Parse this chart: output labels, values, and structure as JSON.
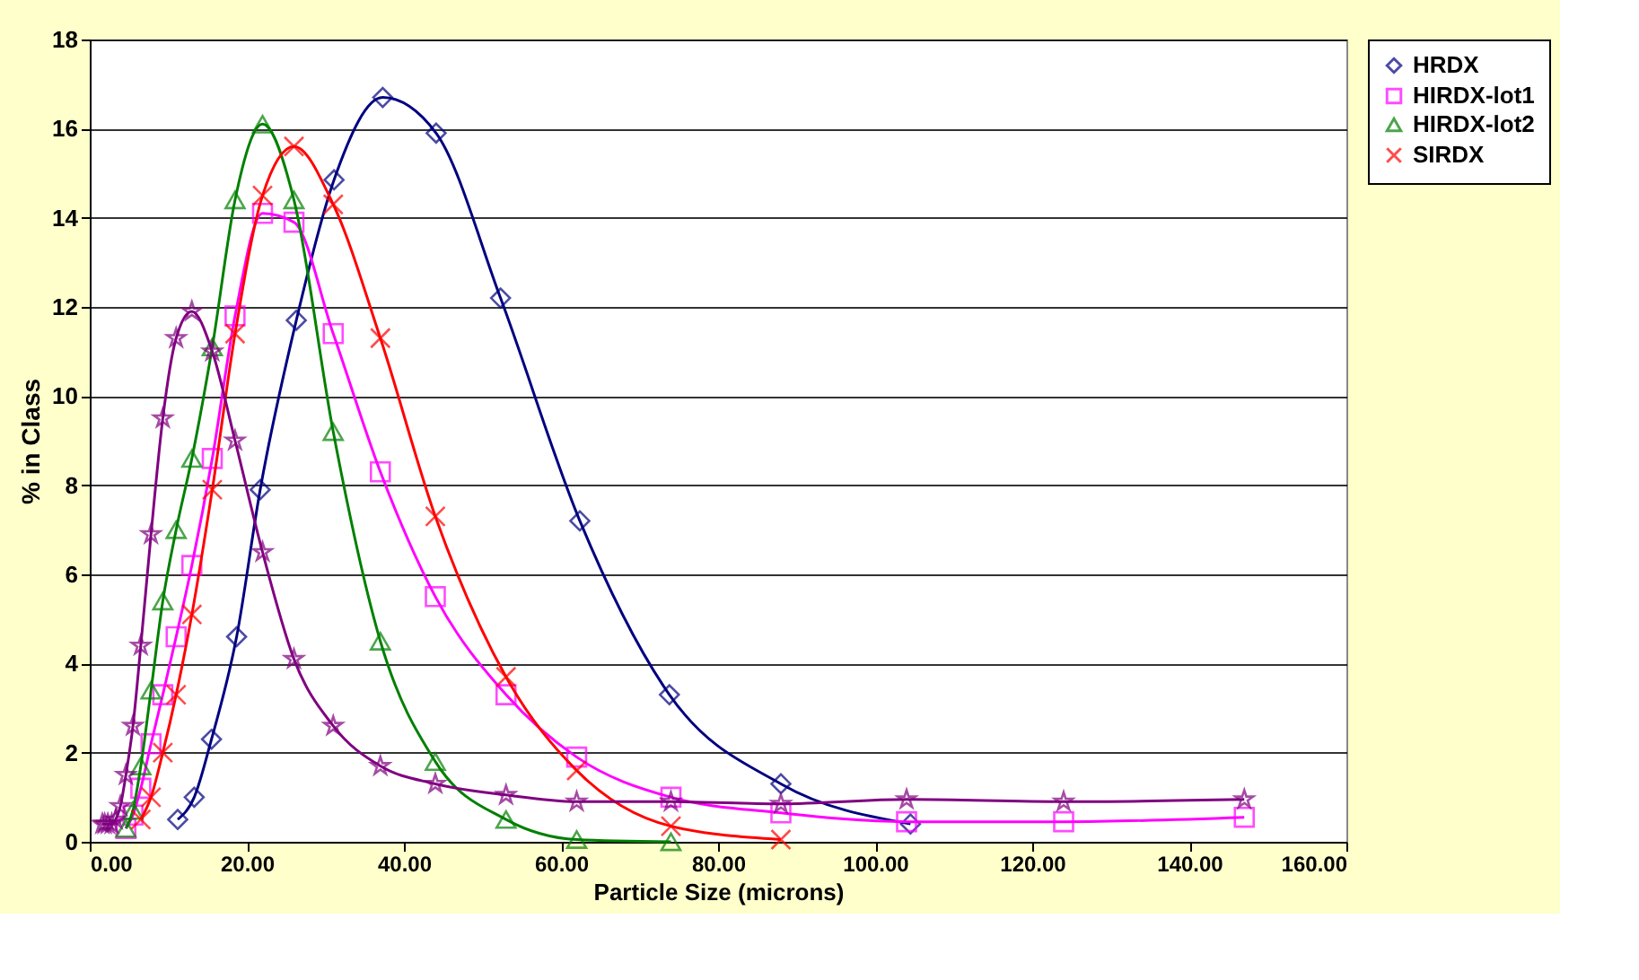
{
  "chart_data": {
    "type": "line",
    "xlabel": "Particle Size (microns)",
    "ylabel": "% in Class",
    "xlim": [
      0,
      160
    ],
    "xticks": [
      {
        "value": 0,
        "label": "0.00"
      },
      {
        "value": 20,
        "label": "20.00"
      },
      {
        "value": 40,
        "label": "40.00"
      },
      {
        "value": 60,
        "label": "60.00"
      },
      {
        "value": 80,
        "label": "80.00"
      },
      {
        "value": 100,
        "label": "100.00"
      },
      {
        "value": 120,
        "label": "120.00"
      },
      {
        "value": 140,
        "label": "140.00"
      },
      {
        "value": 160,
        "label": "160.00"
      }
    ],
    "ylim": [
      0,
      18
    ],
    "yticks": [
      0,
      2,
      4,
      6,
      8,
      10,
      12,
      14,
      16,
      18
    ],
    "grid": "y",
    "legend": "right",
    "series": [
      {
        "name": "HRDX",
        "color": "#000080",
        "marker": "diamond",
        "x": [
          11.2,
          13.3,
          15.5,
          18.7,
          21.7,
          26.3,
          31.1,
          37.3,
          44.1,
          52.3,
          62.4,
          73.8,
          88.0,
          104.5
        ],
        "values": [
          0.5,
          1.0,
          2.3,
          4.6,
          7.9,
          11.7,
          14.85,
          16.7,
          15.9,
          12.2,
          7.2,
          3.3,
          1.3,
          0.4
        ]
      },
      {
        "name": "HIRDX-lot1",
        "color": "#ff00ff",
        "marker": "square",
        "x": [
          4.6,
          5.5,
          6.5,
          7.8,
          9.3,
          11,
          13,
          15.6,
          18.5,
          22,
          26,
          31,
          37,
          44,
          53,
          62,
          74,
          88,
          104,
          124,
          147
        ],
        "values": [
          0.3,
          0.6,
          1.2,
          2.2,
          3.3,
          4.6,
          6.2,
          8.6,
          11.8,
          14.1,
          13.9,
          11.4,
          8.3,
          5.5,
          3.3,
          1.9,
          1.0,
          0.65,
          0.45,
          0.45,
          0.55
        ]
      },
      {
        "name": "HIRDX-lot2",
        "color": "#008000",
        "marker": "triangle",
        "x": [
          4.6,
          5.5,
          6.5,
          7.8,
          9.3,
          11,
          13,
          15.6,
          18.5,
          22,
          26,
          31,
          37,
          44,
          53,
          62,
          74
        ],
        "values": [
          0.3,
          0.7,
          1.7,
          3.4,
          5.4,
          7.0,
          8.6,
          11.1,
          14.4,
          16.1,
          14.4,
          9.2,
          4.5,
          1.8,
          0.5,
          0.05,
          0.0
        ]
      },
      {
        "name": "SIRDX",
        "color": "#ff0000",
        "marker": "cross",
        "x": [
          6.5,
          7.8,
          9.3,
          11,
          13,
          15.6,
          18.5,
          22,
          26,
          31,
          37,
          44,
          53,
          62,
          74,
          88
        ],
        "values": [
          0.5,
          1.0,
          2.0,
          3.3,
          5.1,
          7.9,
          11.4,
          14.5,
          15.6,
          14.3,
          11.3,
          7.3,
          3.7,
          1.6,
          0.35,
          0.05
        ]
      },
      {
        "color": "#800080",
        "marker": "star",
        "x": [
          1.6,
          1.9,
          2.3,
          2.8,
          3.3,
          3.9,
          4.6,
          5.5,
          6.5,
          7.8,
          9.3,
          11,
          13,
          15.6,
          18.5,
          22,
          26,
          31,
          37,
          44,
          53,
          62,
          74,
          88,
          104,
          124,
          147
        ],
        "values": [
          0.4,
          0.4,
          0.4,
          0.4,
          0.5,
          0.8,
          1.5,
          2.6,
          4.4,
          6.9,
          9.5,
          11.3,
          11.9,
          11.0,
          9.0,
          6.5,
          4.1,
          2.6,
          1.7,
          1.3,
          1.05,
          0.9,
          0.9,
          0.85,
          0.95,
          0.9,
          0.95
        ]
      }
    ]
  }
}
